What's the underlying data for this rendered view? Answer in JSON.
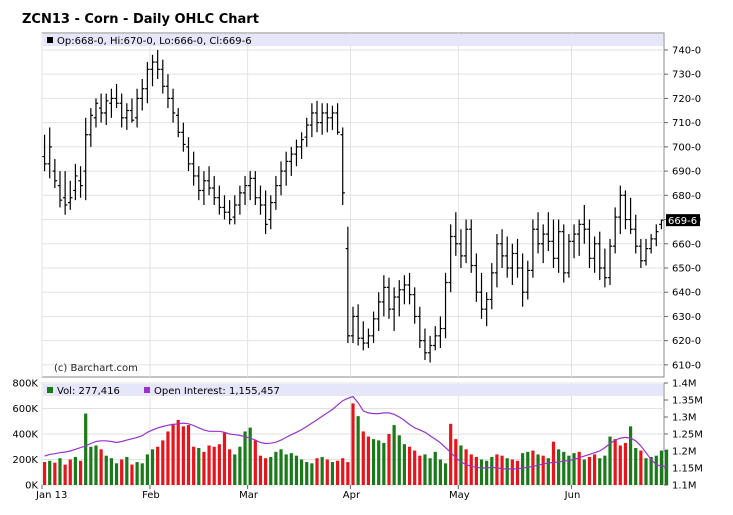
{
  "chart_data": [
    {
      "type": "ohlc",
      "title": "ZCN13 - Corn - Daily OHLC Chart",
      "info_box": "Op:668-0, Hi:670-0, Lo:666-0, Cl:669-6",
      "last_price_label": "669-6",
      "watermark": "(c) Barchart.com",
      "ylim": [
        605,
        747
      ],
      "y_ticks": [
        "740-0",
        "730-0",
        "720-0",
        "710-0",
        "700-0",
        "690-0",
        "680-0",
        "670-0",
        "660-0",
        "650-0",
        "640-0",
        "630-0",
        "620-0",
        "610-0"
      ],
      "y_tick_values": [
        740,
        730,
        720,
        710,
        700,
        690,
        680,
        670,
        660,
        650,
        640,
        630,
        620,
        610
      ],
      "x_tick_labels": [
        "Jan 13",
        "Feb",
        "Mar",
        "Apr",
        "May",
        "Jun"
      ],
      "x_tick_bar_index": [
        0,
        21,
        40,
        60,
        81,
        103
      ],
      "grid": true,
      "bars": [
        {
          "o": 696,
          "h": 705,
          "l": 690,
          "c": 693
        },
        {
          "o": 693,
          "h": 708,
          "l": 687,
          "c": 700
        },
        {
          "o": 690,
          "h": 695,
          "l": 683,
          "c": 686
        },
        {
          "o": 684,
          "h": 690,
          "l": 675,
          "c": 678
        },
        {
          "o": 679,
          "h": 690,
          "l": 672,
          "c": 676
        },
        {
          "o": 677,
          "h": 686,
          "l": 674,
          "c": 679
        },
        {
          "o": 682,
          "h": 693,
          "l": 678,
          "c": 688
        },
        {
          "o": 686,
          "h": 692,
          "l": 679,
          "c": 684
        },
        {
          "o": 690,
          "h": 712,
          "l": 678,
          "c": 705
        },
        {
          "o": 705,
          "h": 716,
          "l": 700,
          "c": 713
        },
        {
          "o": 712,
          "h": 720,
          "l": 708,
          "c": 718
        },
        {
          "o": 716,
          "h": 722,
          "l": 710,
          "c": 714
        },
        {
          "o": 714,
          "h": 722,
          "l": 709,
          "c": 719
        },
        {
          "o": 718,
          "h": 724,
          "l": 712,
          "c": 720
        },
        {
          "o": 720,
          "h": 726,
          "l": 716,
          "c": 718
        },
        {
          "o": 718,
          "h": 722,
          "l": 708,
          "c": 712
        },
        {
          "o": 712,
          "h": 718,
          "l": 707,
          "c": 715
        },
        {
          "o": 715,
          "h": 720,
          "l": 710,
          "c": 711
        },
        {
          "o": 712,
          "h": 724,
          "l": 708,
          "c": 720
        },
        {
          "o": 720,
          "h": 728,
          "l": 715,
          "c": 724
        },
        {
          "o": 724,
          "h": 735,
          "l": 718,
          "c": 732
        },
        {
          "o": 732,
          "h": 738,
          "l": 725,
          "c": 735
        },
        {
          "o": 735,
          "h": 740,
          "l": 728,
          "c": 732
        },
        {
          "o": 732,
          "h": 736,
          "l": 722,
          "c": 725
        },
        {
          "o": 725,
          "h": 730,
          "l": 716,
          "c": 720
        },
        {
          "o": 720,
          "h": 724,
          "l": 710,
          "c": 714
        },
        {
          "o": 713,
          "h": 716,
          "l": 704,
          "c": 706
        },
        {
          "o": 706,
          "h": 710,
          "l": 698,
          "c": 701
        },
        {
          "o": 700,
          "h": 704,
          "l": 690,
          "c": 693
        },
        {
          "o": 693,
          "h": 698,
          "l": 684,
          "c": 688
        },
        {
          "o": 688,
          "h": 692,
          "l": 678,
          "c": 682
        },
        {
          "o": 682,
          "h": 690,
          "l": 676,
          "c": 686
        },
        {
          "o": 686,
          "h": 692,
          "l": 680,
          "c": 683
        },
        {
          "o": 683,
          "h": 688,
          "l": 676,
          "c": 679
        },
        {
          "o": 679,
          "h": 684,
          "l": 672,
          "c": 675
        },
        {
          "o": 675,
          "h": 680,
          "l": 670,
          "c": 673
        },
        {
          "o": 673,
          "h": 678,
          "l": 668,
          "c": 670
        },
        {
          "o": 671,
          "h": 680,
          "l": 668,
          "c": 676
        },
        {
          "o": 676,
          "h": 684,
          "l": 672,
          "c": 681
        },
        {
          "o": 681,
          "h": 688,
          "l": 676,
          "c": 684
        },
        {
          "o": 684,
          "h": 690,
          "l": 678,
          "c": 687
        },
        {
          "o": 687,
          "h": 690,
          "l": 676,
          "c": 679
        },
        {
          "o": 679,
          "h": 684,
          "l": 672,
          "c": 676
        },
        {
          "o": 676,
          "h": 682,
          "l": 664,
          "c": 668
        },
        {
          "o": 670,
          "h": 680,
          "l": 666,
          "c": 677
        },
        {
          "o": 677,
          "h": 688,
          "l": 674,
          "c": 684
        },
        {
          "o": 684,
          "h": 694,
          "l": 680,
          "c": 690
        },
        {
          "o": 690,
          "h": 698,
          "l": 684,
          "c": 694
        },
        {
          "o": 694,
          "h": 700,
          "l": 688,
          "c": 697
        },
        {
          "o": 697,
          "h": 703,
          "l": 692,
          "c": 700
        },
        {
          "o": 700,
          "h": 706,
          "l": 695,
          "c": 703
        },
        {
          "o": 704,
          "h": 712,
          "l": 700,
          "c": 709
        },
        {
          "o": 709,
          "h": 718,
          "l": 704,
          "c": 714
        },
        {
          "o": 714,
          "h": 719,
          "l": 706,
          "c": 710
        },
        {
          "o": 710,
          "h": 718,
          "l": 705,
          "c": 714
        },
        {
          "o": 714,
          "h": 718,
          "l": 706,
          "c": 712
        },
        {
          "o": 712,
          "h": 717,
          "l": 707,
          "c": 714
        },
        {
          "o": 714,
          "h": 718,
          "l": 705,
          "c": 706
        },
        {
          "o": 705,
          "h": 708,
          "l": 676,
          "c": 681
        },
        {
          "o": 658,
          "h": 667,
          "l": 619,
          "c": 622
        },
        {
          "o": 622,
          "h": 634,
          "l": 619,
          "c": 630
        },
        {
          "o": 630,
          "h": 635,
          "l": 618,
          "c": 621
        },
        {
          "o": 621,
          "h": 628,
          "l": 616,
          "c": 619
        },
        {
          "o": 619,
          "h": 625,
          "l": 617,
          "c": 622
        },
        {
          "o": 622,
          "h": 632,
          "l": 619,
          "c": 629
        },
        {
          "o": 629,
          "h": 640,
          "l": 624,
          "c": 636
        },
        {
          "o": 636,
          "h": 647,
          "l": 630,
          "c": 642
        },
        {
          "o": 642,
          "h": 646,
          "l": 629,
          "c": 633
        },
        {
          "o": 633,
          "h": 642,
          "l": 624,
          "c": 638
        },
        {
          "o": 638,
          "h": 645,
          "l": 630,
          "c": 641
        },
        {
          "o": 641,
          "h": 647,
          "l": 635,
          "c": 643
        },
        {
          "o": 643,
          "h": 648,
          "l": 635,
          "c": 639
        },
        {
          "o": 639,
          "h": 642,
          "l": 627,
          "c": 630
        },
        {
          "o": 630,
          "h": 634,
          "l": 617,
          "c": 620
        },
        {
          "o": 620,
          "h": 625,
          "l": 612,
          "c": 615
        },
        {
          "o": 615,
          "h": 622,
          "l": 611,
          "c": 618
        },
        {
          "o": 618,
          "h": 626,
          "l": 616,
          "c": 622
        },
        {
          "o": 622,
          "h": 630,
          "l": 617,
          "c": 625
        },
        {
          "o": 625,
          "h": 648,
          "l": 621,
          "c": 644
        },
        {
          "o": 644,
          "h": 668,
          "l": 640,
          "c": 663
        },
        {
          "o": 663,
          "h": 673,
          "l": 655,
          "c": 660
        },
        {
          "o": 660,
          "h": 666,
          "l": 650,
          "c": 655
        },
        {
          "o": 655,
          "h": 670,
          "l": 652,
          "c": 666
        },
        {
          "o": 666,
          "h": 670,
          "l": 648,
          "c": 651
        },
        {
          "o": 651,
          "h": 656,
          "l": 636,
          "c": 640
        },
        {
          "o": 640,
          "h": 648,
          "l": 629,
          "c": 633
        },
        {
          "o": 633,
          "h": 640,
          "l": 626,
          "c": 637
        },
        {
          "o": 637,
          "h": 652,
          "l": 633,
          "c": 648
        },
        {
          "o": 648,
          "h": 664,
          "l": 642,
          "c": 660
        },
        {
          "o": 660,
          "h": 666,
          "l": 650,
          "c": 655
        },
        {
          "o": 655,
          "h": 663,
          "l": 646,
          "c": 650
        },
        {
          "o": 650,
          "h": 660,
          "l": 643,
          "c": 656
        },
        {
          "o": 656,
          "h": 662,
          "l": 646,
          "c": 650
        },
        {
          "o": 650,
          "h": 656,
          "l": 634,
          "c": 640
        },
        {
          "o": 640,
          "h": 653,
          "l": 637,
          "c": 649
        },
        {
          "o": 649,
          "h": 670,
          "l": 646,
          "c": 666
        },
        {
          "o": 666,
          "h": 673,
          "l": 656,
          "c": 660
        },
        {
          "o": 660,
          "h": 668,
          "l": 652,
          "c": 664
        },
        {
          "o": 664,
          "h": 673,
          "l": 657,
          "c": 661
        },
        {
          "o": 661,
          "h": 670,
          "l": 650,
          "c": 654
        },
        {
          "o": 654,
          "h": 670,
          "l": 648,
          "c": 665
        },
        {
          "o": 665,
          "h": 668,
          "l": 644,
          "c": 648
        },
        {
          "o": 648,
          "h": 664,
          "l": 646,
          "c": 661
        },
        {
          "o": 661,
          "h": 668,
          "l": 654,
          "c": 664
        },
        {
          "o": 664,
          "h": 670,
          "l": 655,
          "c": 668
        },
        {
          "o": 668,
          "h": 676,
          "l": 660,
          "c": 666
        },
        {
          "o": 666,
          "h": 670,
          "l": 650,
          "c": 654
        },
        {
          "o": 654,
          "h": 663,
          "l": 648,
          "c": 660
        },
        {
          "o": 660,
          "h": 665,
          "l": 645,
          "c": 650
        },
        {
          "o": 650,
          "h": 658,
          "l": 642,
          "c": 646
        },
        {
          "o": 646,
          "h": 662,
          "l": 643,
          "c": 659
        },
        {
          "o": 659,
          "h": 675,
          "l": 656,
          "c": 671
        },
        {
          "o": 671,
          "h": 684,
          "l": 664,
          "c": 680
        },
        {
          "o": 680,
          "h": 682,
          "l": 666,
          "c": 670
        },
        {
          "o": 670,
          "h": 679,
          "l": 664,
          "c": 666
        },
        {
          "o": 666,
          "h": 672,
          "l": 656,
          "c": 659
        },
        {
          "o": 659,
          "h": 662,
          "l": 650,
          "c": 653
        },
        {
          "o": 653,
          "h": 662,
          "l": 651,
          "c": 658
        },
        {
          "o": 658,
          "h": 664,
          "l": 656,
          "c": 662
        },
        {
          "o": 662,
          "h": 668,
          "l": 659,
          "c": 665
        },
        {
          "o": 668,
          "h": 670,
          "l": 666,
          "c": 669.75
        }
      ]
    },
    {
      "type": "bar",
      "title": "Volume / Open Interest",
      "legend": [
        {
          "label": "Vol: 277,416",
          "color": "#1a7a1a"
        },
        {
          "label": "Open Interest: 1,155,457",
          "color": "#9933cc"
        }
      ],
      "y_left_ticks": [
        "800K",
        "600K",
        "400K",
        "200K",
        "0K"
      ],
      "y_left_tick_values": [
        800000,
        600000,
        400000,
        200000,
        0
      ],
      "y_left_lim": [
        0,
        800000
      ],
      "y_right_ticks": [
        "1.4M",
        "1.35M",
        "1.3M",
        "1.25M",
        "1.2M",
        "1.15M",
        "1.1M"
      ],
      "y_right_tick_values": [
        1400000,
        1350000,
        1300000,
        1250000,
        1200000,
        1150000,
        1100000
      ],
      "y_right_lim": [
        1100000,
        1400000
      ],
      "volume": [
        180000,
        190000,
        175000,
        210000,
        160000,
        200000,
        220000,
        190000,
        560000,
        300000,
        310000,
        280000,
        230000,
        210000,
        170000,
        200000,
        220000,
        160000,
        180000,
        170000,
        240000,
        280000,
        300000,
        350000,
        420000,
        480000,
        510000,
        460000,
        470000,
        300000,
        290000,
        260000,
        310000,
        300000,
        320000,
        410000,
        280000,
        240000,
        300000,
        420000,
        450000,
        350000,
        230000,
        210000,
        220000,
        260000,
        280000,
        240000,
        250000,
        230000,
        200000,
        180000,
        170000,
        210000,
        220000,
        200000,
        180000,
        190000,
        210000,
        180000,
        640000,
        540000,
        420000,
        380000,
        360000,
        350000,
        330000,
        400000,
        470000,
        390000,
        320000,
        300000,
        270000,
        230000,
        240000,
        210000,
        260000,
        200000,
        170000,
        480000,
        360000,
        310000,
        280000,
        240000,
        220000,
        200000,
        190000,
        220000,
        240000,
        230000,
        210000,
        200000,
        190000,
        250000,
        260000,
        270000,
        240000,
        230000,
        210000,
        340000,
        280000,
        260000,
        230000,
        250000,
        260000,
        200000,
        220000,
        240000,
        210000,
        230000,
        380000,
        360000,
        310000,
        330000,
        460000,
        290000,
        270000,
        210000,
        220000,
        230000,
        270000,
        277416
      ],
      "volume_up": [
        false,
        true,
        false,
        true,
        false,
        false,
        true,
        false,
        true,
        true,
        true,
        false,
        true,
        true,
        true,
        false,
        true,
        false,
        true,
        true,
        true,
        true,
        false,
        false,
        false,
        false,
        false,
        false,
        false,
        false,
        true,
        false,
        false,
        false,
        false,
        false,
        false,
        true,
        true,
        true,
        true,
        false,
        false,
        false,
        true,
        true,
        true,
        true,
        true,
        true,
        true,
        true,
        true,
        false,
        true,
        false,
        true,
        false,
        false,
        false,
        false,
        true,
        false,
        false,
        true,
        true,
        true,
        false,
        true,
        true,
        true,
        false,
        false,
        false,
        true,
        true,
        true,
        true,
        true,
        false,
        false,
        true,
        false,
        false,
        false,
        true,
        true,
        true,
        false,
        false,
        true,
        false,
        false,
        true,
        true,
        false,
        true,
        false,
        true,
        false,
        true,
        true,
        true,
        true,
        false,
        true,
        false,
        false,
        true,
        true,
        true,
        false,
        false,
        false,
        true,
        true,
        false,
        true,
        true,
        true,
        true,
        true
      ],
      "open_interest": [
        1185000,
        1190000,
        1192000,
        1195000,
        1197000,
        1200000,
        1205000,
        1210000,
        1215000,
        1222000,
        1228000,
        1230000,
        1230000,
        1228000,
        1225000,
        1228000,
        1232000,
        1236000,
        1240000,
        1245000,
        1255000,
        1262000,
        1268000,
        1272000,
        1276000,
        1278000,
        1280000,
        1282000,
        1280000,
        1275000,
        1268000,
        1262000,
        1258000,
        1258000,
        1258000,
        1255000,
        1250000,
        1248000,
        1246000,
        1242000,
        1238000,
        1232000,
        1225000,
        1222000,
        1223000,
        1226000,
        1232000,
        1240000,
        1248000,
        1255000,
        1263000,
        1272000,
        1282000,
        1292000,
        1302000,
        1312000,
        1322000,
        1335000,
        1348000,
        1355000,
        1360000,
        1342000,
        1318000,
        1312000,
        1310000,
        1310000,
        1312000,
        1312000,
        1308000,
        1300000,
        1290000,
        1278000,
        1268000,
        1262000,
        1255000,
        1245000,
        1235000,
        1224000,
        1210000,
        1196000,
        1180000,
        1168000,
        1160000,
        1155000,
        1152000,
        1150000,
        1150000,
        1152000,
        1150000,
        1148000,
        1147000,
        1147000,
        1148000,
        1150000,
        1152000,
        1155000,
        1158000,
        1162000,
        1165000,
        1166000,
        1168000,
        1170000,
        1172000,
        1175000,
        1180000,
        1185000,
        1190000,
        1195000,
        1200000,
        1210000,
        1222000,
        1232000,
        1238000,
        1240000,
        1238000,
        1230000,
        1215000,
        1195000,
        1175000,
        1160000,
        1155000,
        1155457
      ]
    }
  ]
}
